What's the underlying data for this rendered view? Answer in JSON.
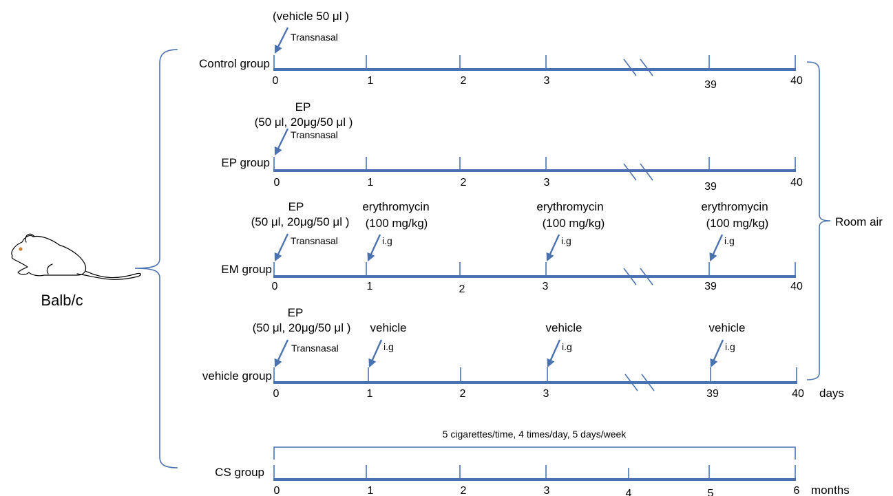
{
  "colors": {
    "line": "#4a72b0",
    "text": "#000000"
  },
  "animal": {
    "icon": "mouse-icon",
    "label": "Balb/c"
  },
  "side_label": "Room air",
  "rows": [
    {
      "id": "control",
      "group_label": "Control group",
      "ticks": [
        "0",
        "1",
        "2",
        "3",
        "39",
        "40"
      ],
      "unit": "",
      "start": {
        "lines": [
          "(vehicle 50 μl )"
        ],
        "route": "Transnasal"
      },
      "doses": []
    },
    {
      "id": "ep",
      "group_label": "EP group",
      "ticks": [
        "0",
        "1",
        "2",
        "3",
        "39",
        "40"
      ],
      "unit": "",
      "start": {
        "lines": [
          "EP",
          "(50 μl, 20μg/50 μl )"
        ],
        "route": "Transnasal"
      },
      "doses": []
    },
    {
      "id": "em",
      "group_label": "EM group",
      "ticks": [
        "0",
        "1",
        "2",
        "3",
        "39",
        "40"
      ],
      "unit": "",
      "start": {
        "lines": [
          "EP",
          "(50 μl, 20μg/50 μl )"
        ],
        "route": "Transnasal"
      },
      "doses": [
        {
          "lines": [
            "erythromycin",
            "(100 mg/kg)"
          ],
          "route": "i.g"
        },
        {
          "lines": [
            "erythromycin",
            "(100 mg/kg)"
          ],
          "route": "i.g"
        },
        {
          "lines": [
            "erythromycin",
            "(100 mg/kg)"
          ],
          "route": "i.g"
        }
      ]
    },
    {
      "id": "vehicle",
      "group_label": "vehicle group",
      "ticks": [
        "0",
        "1",
        "2",
        "3",
        "39",
        "40"
      ],
      "unit": "days",
      "start": {
        "lines": [
          "EP",
          "(50 μl, 20μg/50 μl )"
        ],
        "route": "Transnasal"
      },
      "doses": [
        {
          "lines": [
            "vehicle"
          ],
          "route": "i.g"
        },
        {
          "lines": [
            "vehicle"
          ],
          "route": "i.g"
        },
        {
          "lines": [
            "vehicle"
          ],
          "route": "i.g"
        }
      ]
    },
    {
      "id": "cs",
      "group_label": "CS group",
      "ticks": [
        "0",
        "1",
        "2",
        "3",
        "4",
        "5",
        "6"
      ],
      "unit": "months",
      "exposure": "5 cigarettes/time, 4 times/day, 5 days/week"
    }
  ]
}
